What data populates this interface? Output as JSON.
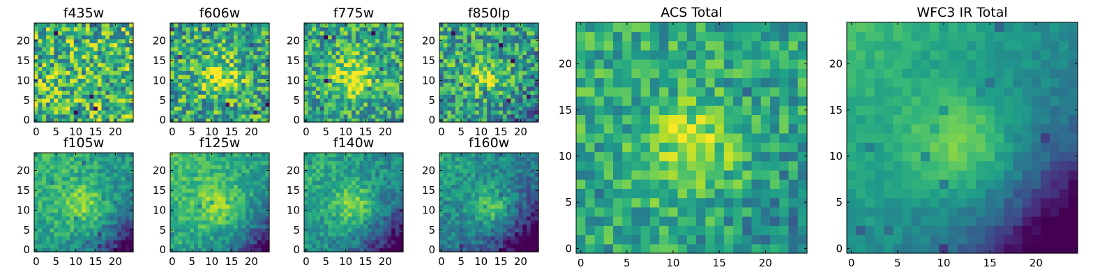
{
  "figure": {
    "colormap": "viridis",
    "colormap_stops": [
      "#440154",
      "#482878",
      "#3e4989",
      "#31688e",
      "#26828e",
      "#1f9e89",
      "#35b779",
      "#6ece58",
      "#b5de2b",
      "#fde725"
    ],
    "grid_shape": [
      25,
      25
    ],
    "chart_data": [
      {
        "type": "heatmap",
        "title": "f435w",
        "xticks": [
          0,
          5,
          10,
          15,
          20
        ],
        "yticks": [
          0,
          5,
          10,
          15,
          20
        ],
        "xlim": [
          0,
          25
        ],
        "ylim": [
          0,
          25
        ],
        "source": {
          "center": [
            12,
            11
          ],
          "sigma": 5,
          "amp": 0.0
        },
        "base": 0.66,
        "noise": 0.34,
        "gradient": 0,
        "dark_lower_right": 0,
        "seed": 11
      },
      {
        "type": "heatmap",
        "title": "f606w",
        "xticks": [
          0,
          5,
          10,
          15,
          20
        ],
        "yticks": [
          0,
          5,
          10,
          15,
          20
        ],
        "xlim": [
          0,
          25
        ],
        "ylim": [
          0,
          25
        ],
        "source": {
          "center": [
            12,
            11
          ],
          "sigma": 3.6,
          "amp": 0.32
        },
        "base": 0.6,
        "noise": 0.3,
        "gradient": 0,
        "dark_lower_right": 0,
        "seed": 22
      },
      {
        "type": "heatmap",
        "title": "f775w",
        "xticks": [
          0,
          5,
          10,
          15,
          20
        ],
        "yticks": [
          0,
          5,
          10,
          15,
          20
        ],
        "xlim": [
          0,
          25
        ],
        "ylim": [
          0,
          25
        ],
        "source": {
          "center": [
            12,
            11
          ],
          "sigma": 3.6,
          "amp": 0.34
        },
        "base": 0.6,
        "noise": 0.27,
        "gradient": 0.05,
        "dark_lower_right": 0,
        "seed": 33
      },
      {
        "type": "heatmap",
        "title": "f850lp",
        "xticks": [
          0,
          5,
          10,
          15,
          20
        ],
        "yticks": [
          0,
          5,
          10,
          15,
          20
        ],
        "xlim": [
          0,
          25
        ],
        "ylim": [
          0,
          25
        ],
        "source": {
          "center": [
            12,
            11
          ],
          "sigma": 3.3,
          "amp": 0.3
        },
        "base": 0.55,
        "noise": 0.3,
        "gradient": 0.1,
        "dark_lower_right": 0.1,
        "seed": 44
      },
      {
        "type": "heatmap",
        "title": "f105w",
        "xticks": [
          0,
          5,
          10,
          15,
          20
        ],
        "yticks": [
          0,
          5,
          10,
          15,
          20
        ],
        "xlim": [
          0,
          25
        ],
        "ylim": [
          0,
          25
        ],
        "source": {
          "center": [
            12,
            11
          ],
          "sigma": 4.5,
          "amp": 0.28
        },
        "base": 0.55,
        "noise": 0.14,
        "gradient": 0.25,
        "dark_lower_right": 0.35,
        "seed": 55
      },
      {
        "type": "heatmap",
        "title": "f125w",
        "xticks": [
          0,
          5,
          10,
          15,
          20
        ],
        "yticks": [
          0,
          5,
          10,
          15,
          20
        ],
        "xlim": [
          0,
          25
        ],
        "ylim": [
          0,
          25
        ],
        "source": {
          "center": [
            12,
            11
          ],
          "sigma": 4.5,
          "amp": 0.26
        },
        "base": 0.58,
        "noise": 0.13,
        "gradient": 0.25,
        "dark_lower_right": 0.35,
        "seed": 66
      },
      {
        "type": "heatmap",
        "title": "f140w",
        "xticks": [
          0,
          5,
          10,
          15,
          20
        ],
        "yticks": [
          0,
          5,
          10,
          15,
          20
        ],
        "xlim": [
          0,
          25
        ],
        "ylim": [
          0,
          25
        ],
        "source": {
          "center": [
            12,
            11
          ],
          "sigma": 4,
          "amp": 0.3
        },
        "base": 0.5,
        "noise": 0.14,
        "gradient": 0.28,
        "dark_lower_right": 0.4,
        "seed": 77
      },
      {
        "type": "heatmap",
        "title": "f160w",
        "xticks": [
          0,
          5,
          10,
          15,
          20
        ],
        "yticks": [
          0,
          5,
          10,
          15,
          20
        ],
        "xlim": [
          0,
          25
        ],
        "ylim": [
          0,
          25
        ],
        "source": {
          "center": [
            13,
            11
          ],
          "sigma": 3.6,
          "amp": 0.35
        },
        "base": 0.42,
        "noise": 0.14,
        "gradient": 0.35,
        "dark_lower_right": 0.45,
        "seed": 88
      },
      {
        "type": "heatmap",
        "title": "ACS Total",
        "xticks": [
          0,
          5,
          10,
          15,
          20
        ],
        "yticks": [
          0,
          5,
          10,
          15,
          20
        ],
        "xlim": [
          0,
          25
        ],
        "ylim": [
          0,
          25
        ],
        "source": {
          "center": [
            12,
            11
          ],
          "sigma": 3.6,
          "amp": 0.3
        },
        "base": 0.6,
        "noise": 0.2,
        "gradient": 0.04,
        "dark_lower_right": 0.12,
        "seed": 99
      },
      {
        "type": "heatmap",
        "title": "WFC3 IR Total",
        "xticks": [
          0,
          5,
          10,
          15,
          20
        ],
        "yticks": [
          0,
          5,
          10,
          15,
          20
        ],
        "xlim": [
          0,
          25
        ],
        "ylim": [
          0,
          25
        ],
        "source": {
          "center": [
            12,
            11
          ],
          "sigma": 4.2,
          "amp": 0.3
        },
        "base": 0.5,
        "noise": 0.06,
        "gradient": 0.35,
        "dark_lower_right": 0.5,
        "seed": 111
      }
    ]
  }
}
